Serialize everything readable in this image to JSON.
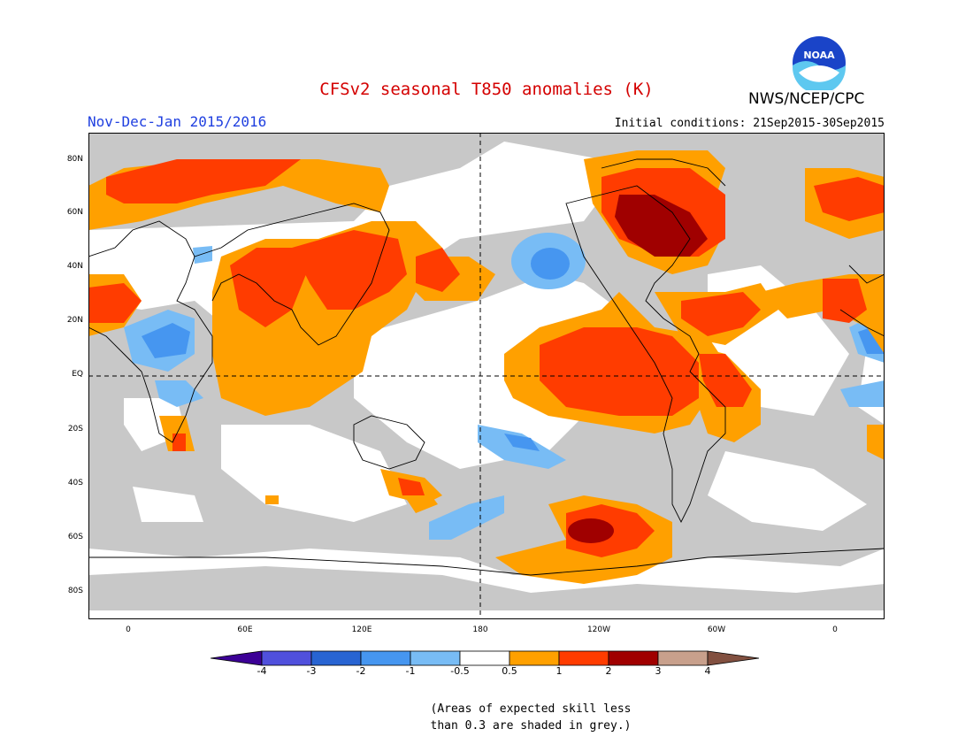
{
  "header": {
    "title": "CFSv2 seasonal T850 anomalies (K)",
    "period": "Nov-Dec-Jan 2015/2016",
    "initial_conditions": "Initial conditions: 21Sep2015-30Sep2015",
    "agency": "NWS/NCEP/CPC",
    "logo_text": "NOAA"
  },
  "map": {
    "lat_labels": [
      "80N",
      "60N",
      "40N",
      "20N",
      "EQ",
      "20S",
      "40S",
      "60S",
      "80S"
    ],
    "lon_labels": [
      "0",
      "60E",
      "120E",
      "180",
      "120W",
      "60W",
      "0"
    ],
    "colors": {
      "skill_grey": "#c8c8c8",
      "ocean_white": "#ffffff",
      "coast": "#000000"
    }
  },
  "legend": {
    "labels": [
      "-4",
      "-3",
      "-2",
      "-1",
      "-0.5",
      "0.5",
      "1",
      "2",
      "3",
      "4"
    ],
    "colors": [
      "#3c0096",
      "#5050dc",
      "#2864d2",
      "#4696f0",
      "#78bcf5",
      "#ffffff",
      "#ffa000",
      "#ff3c00",
      "#a00000",
      "#c8a08c",
      "#825040"
    ]
  },
  "note": {
    "line1": "(Areas of expected skill less",
    "line2": "than 0.3 are shaded in grey.)"
  }
}
